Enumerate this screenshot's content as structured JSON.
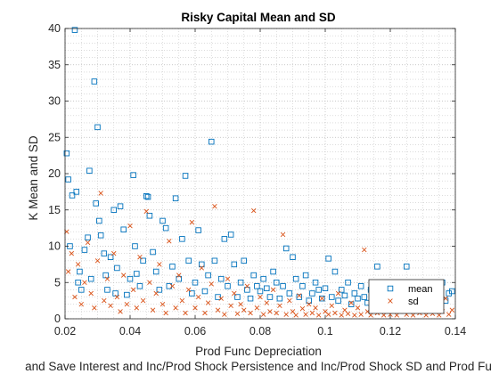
{
  "chart_data": {
    "type": "scatter",
    "title": "Risky Capital Mean and SD",
    "xlabel": "Prod Func Depreciation",
    "ylabel": "K Mean and SD",
    "subtitle": "and Save Interest and Inc/Prod Shock Persistence and Inc/Prod Shock SD and Prod Fu",
    "xlim": [
      0.02,
      0.14
    ],
    "ylim": [
      0,
      40
    ],
    "xticks": [
      0.02,
      0.04,
      0.06,
      0.08,
      0.1,
      0.12,
      0.14
    ],
    "xtick_labels": [
      "0.02",
      "0.04",
      "0.06",
      "0.08",
      "0.1",
      "0.12",
      "0.14"
    ],
    "yticks": [
      0,
      5,
      10,
      15,
      20,
      25,
      30,
      35,
      40
    ],
    "ytick_labels": [
      "0",
      "5",
      "10",
      "15",
      "20",
      "25",
      "30",
      "35",
      "40"
    ],
    "grid": "dotted-minor",
    "legend_position": "bottom-right",
    "colors": {
      "mean": "#0072BD",
      "sd": "#D95319"
    },
    "series": [
      {
        "name": "mean",
        "marker": "square",
        "color": "#0072BD",
        "points": [
          [
            0.0205,
            22.8
          ],
          [
            0.021,
            19.2
          ],
          [
            0.0215,
            10.0
          ],
          [
            0.0222,
            17.0
          ],
          [
            0.023,
            39.8
          ],
          [
            0.0235,
            17.5
          ],
          [
            0.024,
            5.0
          ],
          [
            0.0245,
            6.5
          ],
          [
            0.025,
            4.0
          ],
          [
            0.026,
            9.5
          ],
          [
            0.027,
            11.2
          ],
          [
            0.0275,
            20.4
          ],
          [
            0.028,
            5.5
          ],
          [
            0.029,
            32.7
          ],
          [
            0.0295,
            15.9
          ],
          [
            0.03,
            26.4
          ],
          [
            0.0305,
            13.5
          ],
          [
            0.031,
            11.5
          ],
          [
            0.032,
            9.0
          ],
          [
            0.0325,
            6.0
          ],
          [
            0.033,
            4.0
          ],
          [
            0.034,
            8.5
          ],
          [
            0.035,
            15.0
          ],
          [
            0.0355,
            3.5
          ],
          [
            0.036,
            7.0
          ],
          [
            0.037,
            15.5
          ],
          [
            0.038,
            12.3
          ],
          [
            0.039,
            3.3
          ],
          [
            0.04,
            5.5
          ],
          [
            0.041,
            19.8
          ],
          [
            0.0415,
            10.0
          ],
          [
            0.042,
            6.2
          ],
          [
            0.043,
            4.5
          ],
          [
            0.044,
            8.0
          ],
          [
            0.045,
            16.9
          ],
          [
            0.0455,
            16.8
          ],
          [
            0.046,
            14.2
          ],
          [
            0.047,
            9.2
          ],
          [
            0.048,
            6.5
          ],
          [
            0.049,
            4.0
          ],
          [
            0.05,
            13.5
          ],
          [
            0.051,
            12.5
          ],
          [
            0.052,
            4.5
          ],
          [
            0.053,
            7.2
          ],
          [
            0.054,
            16.6
          ],
          [
            0.055,
            5.5
          ],
          [
            0.056,
            11.0
          ],
          [
            0.057,
            19.7
          ],
          [
            0.058,
            8.0
          ],
          [
            0.059,
            3.5
          ],
          [
            0.06,
            5.0
          ],
          [
            0.061,
            12.2
          ],
          [
            0.062,
            7.5
          ],
          [
            0.063,
            3.8
          ],
          [
            0.064,
            6.0
          ],
          [
            0.065,
            24.4
          ],
          [
            0.066,
            8.0
          ],
          [
            0.067,
            3.0
          ],
          [
            0.068,
            5.5
          ],
          [
            0.069,
            11.0
          ],
          [
            0.07,
            4.5
          ],
          [
            0.071,
            11.6
          ],
          [
            0.072,
            7.5
          ],
          [
            0.073,
            3.0
          ],
          [
            0.074,
            5.0
          ],
          [
            0.075,
            8.0
          ],
          [
            0.076,
            4.0
          ],
          [
            0.077,
            2.8
          ],
          [
            0.078,
            6.0
          ],
          [
            0.079,
            4.5
          ],
          [
            0.08,
            3.8
          ],
          [
            0.081,
            5.5
          ],
          [
            0.082,
            4.2
          ],
          [
            0.083,
            3.0
          ],
          [
            0.084,
            6.5
          ],
          [
            0.085,
            5.0
          ],
          [
            0.086,
            2.8
          ],
          [
            0.087,
            4.5
          ],
          [
            0.088,
            9.7
          ],
          [
            0.089,
            3.5
          ],
          [
            0.09,
            8.5
          ],
          [
            0.091,
            5.5
          ],
          [
            0.092,
            3.0
          ],
          [
            0.093,
            4.5
          ],
          [
            0.094,
            6.0
          ],
          [
            0.095,
            2.5
          ],
          [
            0.096,
            3.5
          ],
          [
            0.097,
            5.0
          ],
          [
            0.098,
            4.0
          ],
          [
            0.099,
            2.8
          ],
          [
            0.1,
            4.2
          ],
          [
            0.101,
            8.3
          ],
          [
            0.102,
            3.0
          ],
          [
            0.103,
            6.5
          ],
          [
            0.104,
            2.5
          ],
          [
            0.105,
            4.0
          ],
          [
            0.106,
            3.2
          ],
          [
            0.107,
            5.0
          ],
          [
            0.108,
            2.0
          ],
          [
            0.109,
            3.5
          ],
          [
            0.11,
            2.8
          ],
          [
            0.111,
            4.5
          ],
          [
            0.112,
            3.0
          ],
          [
            0.113,
            2.2
          ],
          [
            0.114,
            4.0
          ],
          [
            0.115,
            2.5
          ],
          [
            0.116,
            7.2
          ],
          [
            0.117,
            3.5
          ],
          [
            0.118,
            2.0
          ],
          [
            0.119,
            4.5
          ],
          [
            0.12,
            3.0
          ],
          [
            0.121,
            2.5
          ],
          [
            0.122,
            4.8
          ],
          [
            0.123,
            2.2
          ],
          [
            0.124,
            3.5
          ],
          [
            0.125,
            7.2
          ],
          [
            0.126,
            4.0
          ],
          [
            0.127,
            2.5
          ],
          [
            0.128,
            3.0
          ],
          [
            0.129,
            5.0
          ],
          [
            0.13,
            2.0
          ],
          [
            0.131,
            4.0
          ],
          [
            0.132,
            3.0
          ],
          [
            0.133,
            4.5
          ],
          [
            0.134,
            2.5
          ],
          [
            0.135,
            3.5
          ],
          [
            0.136,
            5.0
          ],
          [
            0.137,
            2.5
          ],
          [
            0.138,
            3.5
          ],
          [
            0.139,
            3.8
          ]
        ]
      },
      {
        "name": "sd",
        "marker": "x",
        "color": "#D95319",
        "points": [
          [
            0.0205,
            12.0
          ],
          [
            0.021,
            6.5
          ],
          [
            0.022,
            9.0
          ],
          [
            0.023,
            3.0
          ],
          [
            0.024,
            7.5
          ],
          [
            0.025,
            2.0
          ],
          [
            0.026,
            5.0
          ],
          [
            0.027,
            10.5
          ],
          [
            0.028,
            3.5
          ],
          [
            0.029,
            1.5
          ],
          [
            0.03,
            8.0
          ],
          [
            0.031,
            17.3
          ],
          [
            0.032,
            2.5
          ],
          [
            0.033,
            5.5
          ],
          [
            0.034,
            1.8
          ],
          [
            0.035,
            9.0
          ],
          [
            0.036,
            3.0
          ],
          [
            0.037,
            1.0
          ],
          [
            0.038,
            6.0
          ],
          [
            0.039,
            2.0
          ],
          [
            0.04,
            12.8
          ],
          [
            0.041,
            4.0
          ],
          [
            0.042,
            1.5
          ],
          [
            0.043,
            8.5
          ],
          [
            0.044,
            2.5
          ],
          [
            0.045,
            14.8
          ],
          [
            0.046,
            5.0
          ],
          [
            0.047,
            1.2
          ],
          [
            0.048,
            3.5
          ],
          [
            0.049,
            7.5
          ],
          [
            0.05,
            2.0
          ],
          [
            0.051,
            0.8
          ],
          [
            0.052,
            10.7
          ],
          [
            0.053,
            4.5
          ],
          [
            0.054,
            1.5
          ],
          [
            0.055,
            6.0
          ],
          [
            0.056,
            2.5
          ],
          [
            0.057,
            0.8
          ],
          [
            0.058,
            4.0
          ],
          [
            0.059,
            13.3
          ],
          [
            0.06,
            1.5
          ],
          [
            0.061,
            3.0
          ],
          [
            0.062,
            7.0
          ],
          [
            0.063,
            0.8
          ],
          [
            0.064,
            2.2
          ],
          [
            0.065,
            4.8
          ],
          [
            0.066,
            15.5
          ],
          [
            0.067,
            1.2
          ],
          [
            0.068,
            2.8
          ],
          [
            0.069,
            0.6
          ],
          [
            0.07,
            5.5
          ],
          [
            0.071,
            1.8
          ],
          [
            0.072,
            3.5
          ],
          [
            0.073,
            0.7
          ],
          [
            0.074,
            2.0
          ],
          [
            0.075,
            1.2
          ],
          [
            0.076,
            4.5
          ],
          [
            0.077,
            0.8
          ],
          [
            0.078,
            14.9
          ],
          [
            0.079,
            1.5
          ],
          [
            0.08,
            3.0
          ],
          [
            0.081,
            0.6
          ],
          [
            0.082,
            2.2
          ],
          [
            0.083,
            1.0
          ],
          [
            0.084,
            4.0
          ],
          [
            0.085,
            0.8
          ],
          [
            0.086,
            1.8
          ],
          [
            0.087,
            11.6
          ],
          [
            0.088,
            0.6
          ],
          [
            0.089,
            2.5
          ],
          [
            0.09,
            1.0
          ],
          [
            0.091,
            0.5
          ],
          [
            0.092,
            3.2
          ],
          [
            0.093,
            1.4
          ],
          [
            0.094,
            0.6
          ],
          [
            0.095,
            2.0
          ],
          [
            0.096,
            0.8
          ],
          [
            0.097,
            1.5
          ],
          [
            0.098,
            0.5
          ],
          [
            0.099,
            2.8
          ],
          [
            0.1,
            1.0
          ],
          [
            0.101,
            0.6
          ],
          [
            0.102,
            1.8
          ],
          [
            0.103,
            0.8
          ],
          [
            0.104,
            3.5
          ],
          [
            0.105,
            0.5
          ],
          [
            0.106,
            1.2
          ],
          [
            0.107,
            0.7
          ],
          [
            0.108,
            2.2
          ],
          [
            0.109,
            0.5
          ],
          [
            0.11,
            1.5
          ],
          [
            0.111,
            0.6
          ],
          [
            0.112,
            9.5
          ],
          [
            0.113,
            1.0
          ],
          [
            0.114,
            0.5
          ],
          [
            0.115,
            2.0
          ],
          [
            0.116,
            0.8
          ],
          [
            0.117,
            1.3
          ],
          [
            0.118,
            0.5
          ],
          [
            0.119,
            3.0
          ],
          [
            0.12,
            0.6
          ],
          [
            0.121,
            1.8
          ],
          [
            0.122,
            0.5
          ],
          [
            0.123,
            1.0
          ],
          [
            0.124,
            2.5
          ],
          [
            0.125,
            0.6
          ],
          [
            0.126,
            1.4
          ],
          [
            0.127,
            0.5
          ],
          [
            0.128,
            2.0
          ],
          [
            0.129,
            0.8
          ],
          [
            0.13,
            1.2
          ],
          [
            0.131,
            0.5
          ],
          [
            0.132,
            2.2
          ],
          [
            0.133,
            0.7
          ],
          [
            0.134,
            1.5
          ],
          [
            0.135,
            0.5
          ],
          [
            0.136,
            1.0
          ],
          [
            0.137,
            2.8
          ],
          [
            0.138,
            0.6
          ],
          [
            0.139,
            1.2
          ]
        ]
      }
    ]
  }
}
